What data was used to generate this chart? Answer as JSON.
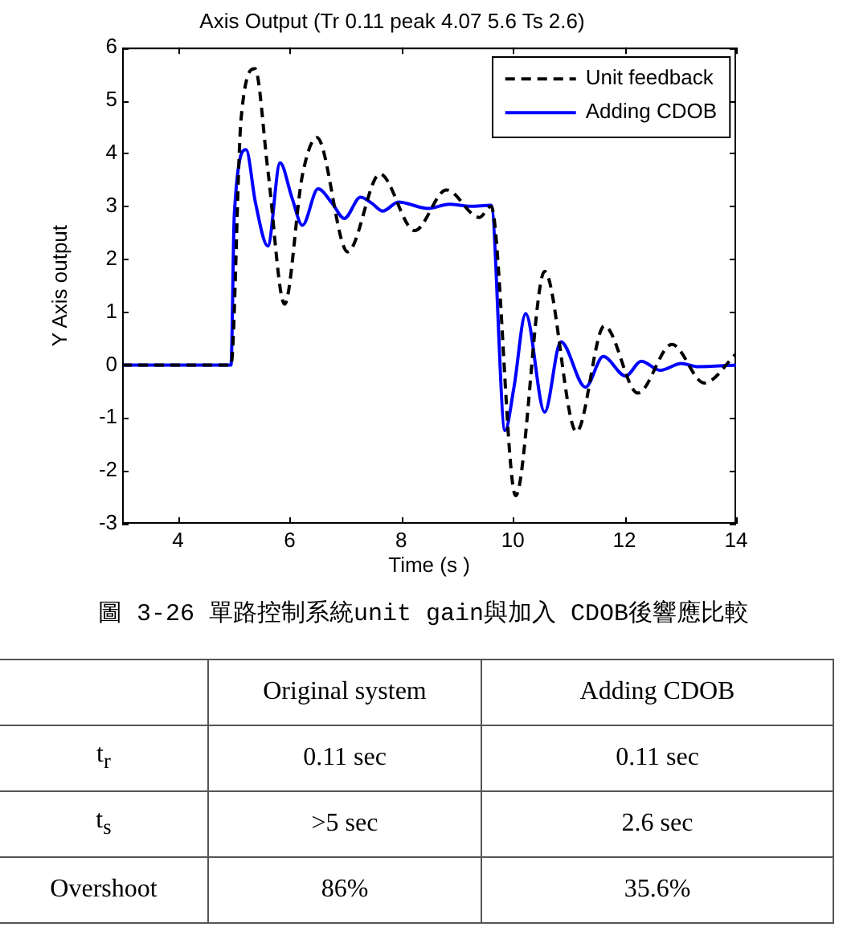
{
  "chart_data": [
    {
      "type": "line",
      "title": "Axis Output (Tr 0.11 peak 4.07 5.6 Ts 2.6)",
      "xlabel": "Time (s )",
      "ylabel": "Y Axis output",
      "annotations": [
        "圖 3-26 單路控制系統unit gain與加入 CDOB後響應比較"
      ],
      "xlim": [
        3,
        14
      ],
      "xticks": [
        4,
        6,
        8,
        10,
        12,
        14
      ],
      "ylim": [
        -3,
        6
      ],
      "yticks": [
        -3,
        -2,
        -1,
        0,
        1,
        2,
        3,
        4,
        5,
        6
      ],
      "grid": false,
      "legend": "top right",
      "series": [
        {
          "name": "Unit feedback",
          "color": "#000000",
          "line_style": "dashed",
          "x": [
            3,
            4.95,
            5.13,
            5.38,
            5.61,
            5.91,
            6.23,
            6.49,
            7.04,
            7.62,
            8.24,
            8.81,
            9.4,
            9.61,
            10.05,
            10.57,
            11.14,
            11.64,
            12.24,
            12.85,
            13.43,
            14
          ],
          "values": [
            0,
            0,
            4.64,
            5.6,
            3.69,
            1.15,
            3.59,
            4.3,
            2.14,
            3.61,
            2.54,
            3.31,
            2.79,
            3.0,
            -2.47,
            1.77,
            -1.26,
            0.74,
            -0.53,
            0.39,
            -0.34,
            0.21
          ]
        },
        {
          "name": "Adding CDOB",
          "color": "#0000ff",
          "line_style": "solid",
          "x": [
            3,
            4.95,
            5.01,
            5.22,
            5.39,
            5.61,
            5.83,
            6.04,
            6.23,
            6.51,
            6.76,
            6.98,
            7.27,
            7.47,
            7.67,
            7.95,
            8.48,
            8.86,
            9.24,
            9.61,
            9.86,
            10.02,
            10.23,
            10.57,
            10.86,
            11.3,
            11.62,
            12.02,
            12.3,
            12.64,
            13.02,
            13.3,
            14
          ],
          "values": [
            0,
            0,
            2.85,
            4.07,
            3.06,
            2.25,
            3.82,
            3.17,
            2.64,
            3.33,
            3.06,
            2.77,
            3.17,
            3.06,
            2.91,
            3.08,
            2.96,
            3.04,
            3.0,
            3.02,
            -1.24,
            -0.42,
            0.97,
            -0.89,
            0.44,
            -0.42,
            0.16,
            -0.21,
            0.07,
            -0.1,
            0.03,
            -0.03,
            0
          ]
        }
      ]
    },
    {
      "type": "other",
      "categories": [
        null,
        "Original system",
        "Adding CDOB"
      ],
      "y_categories": [
        "t$_{r}$",
        "t$_{s}$",
        "Overshoot"
      ],
      "cell_labels": [
        [
          "0.11 sec",
          "0.11 sec"
        ],
        [
          ">5 sec",
          "2.6 sec"
        ],
        [
          "86%",
          "35.6%"
        ]
      ]
    }
  ]
}
